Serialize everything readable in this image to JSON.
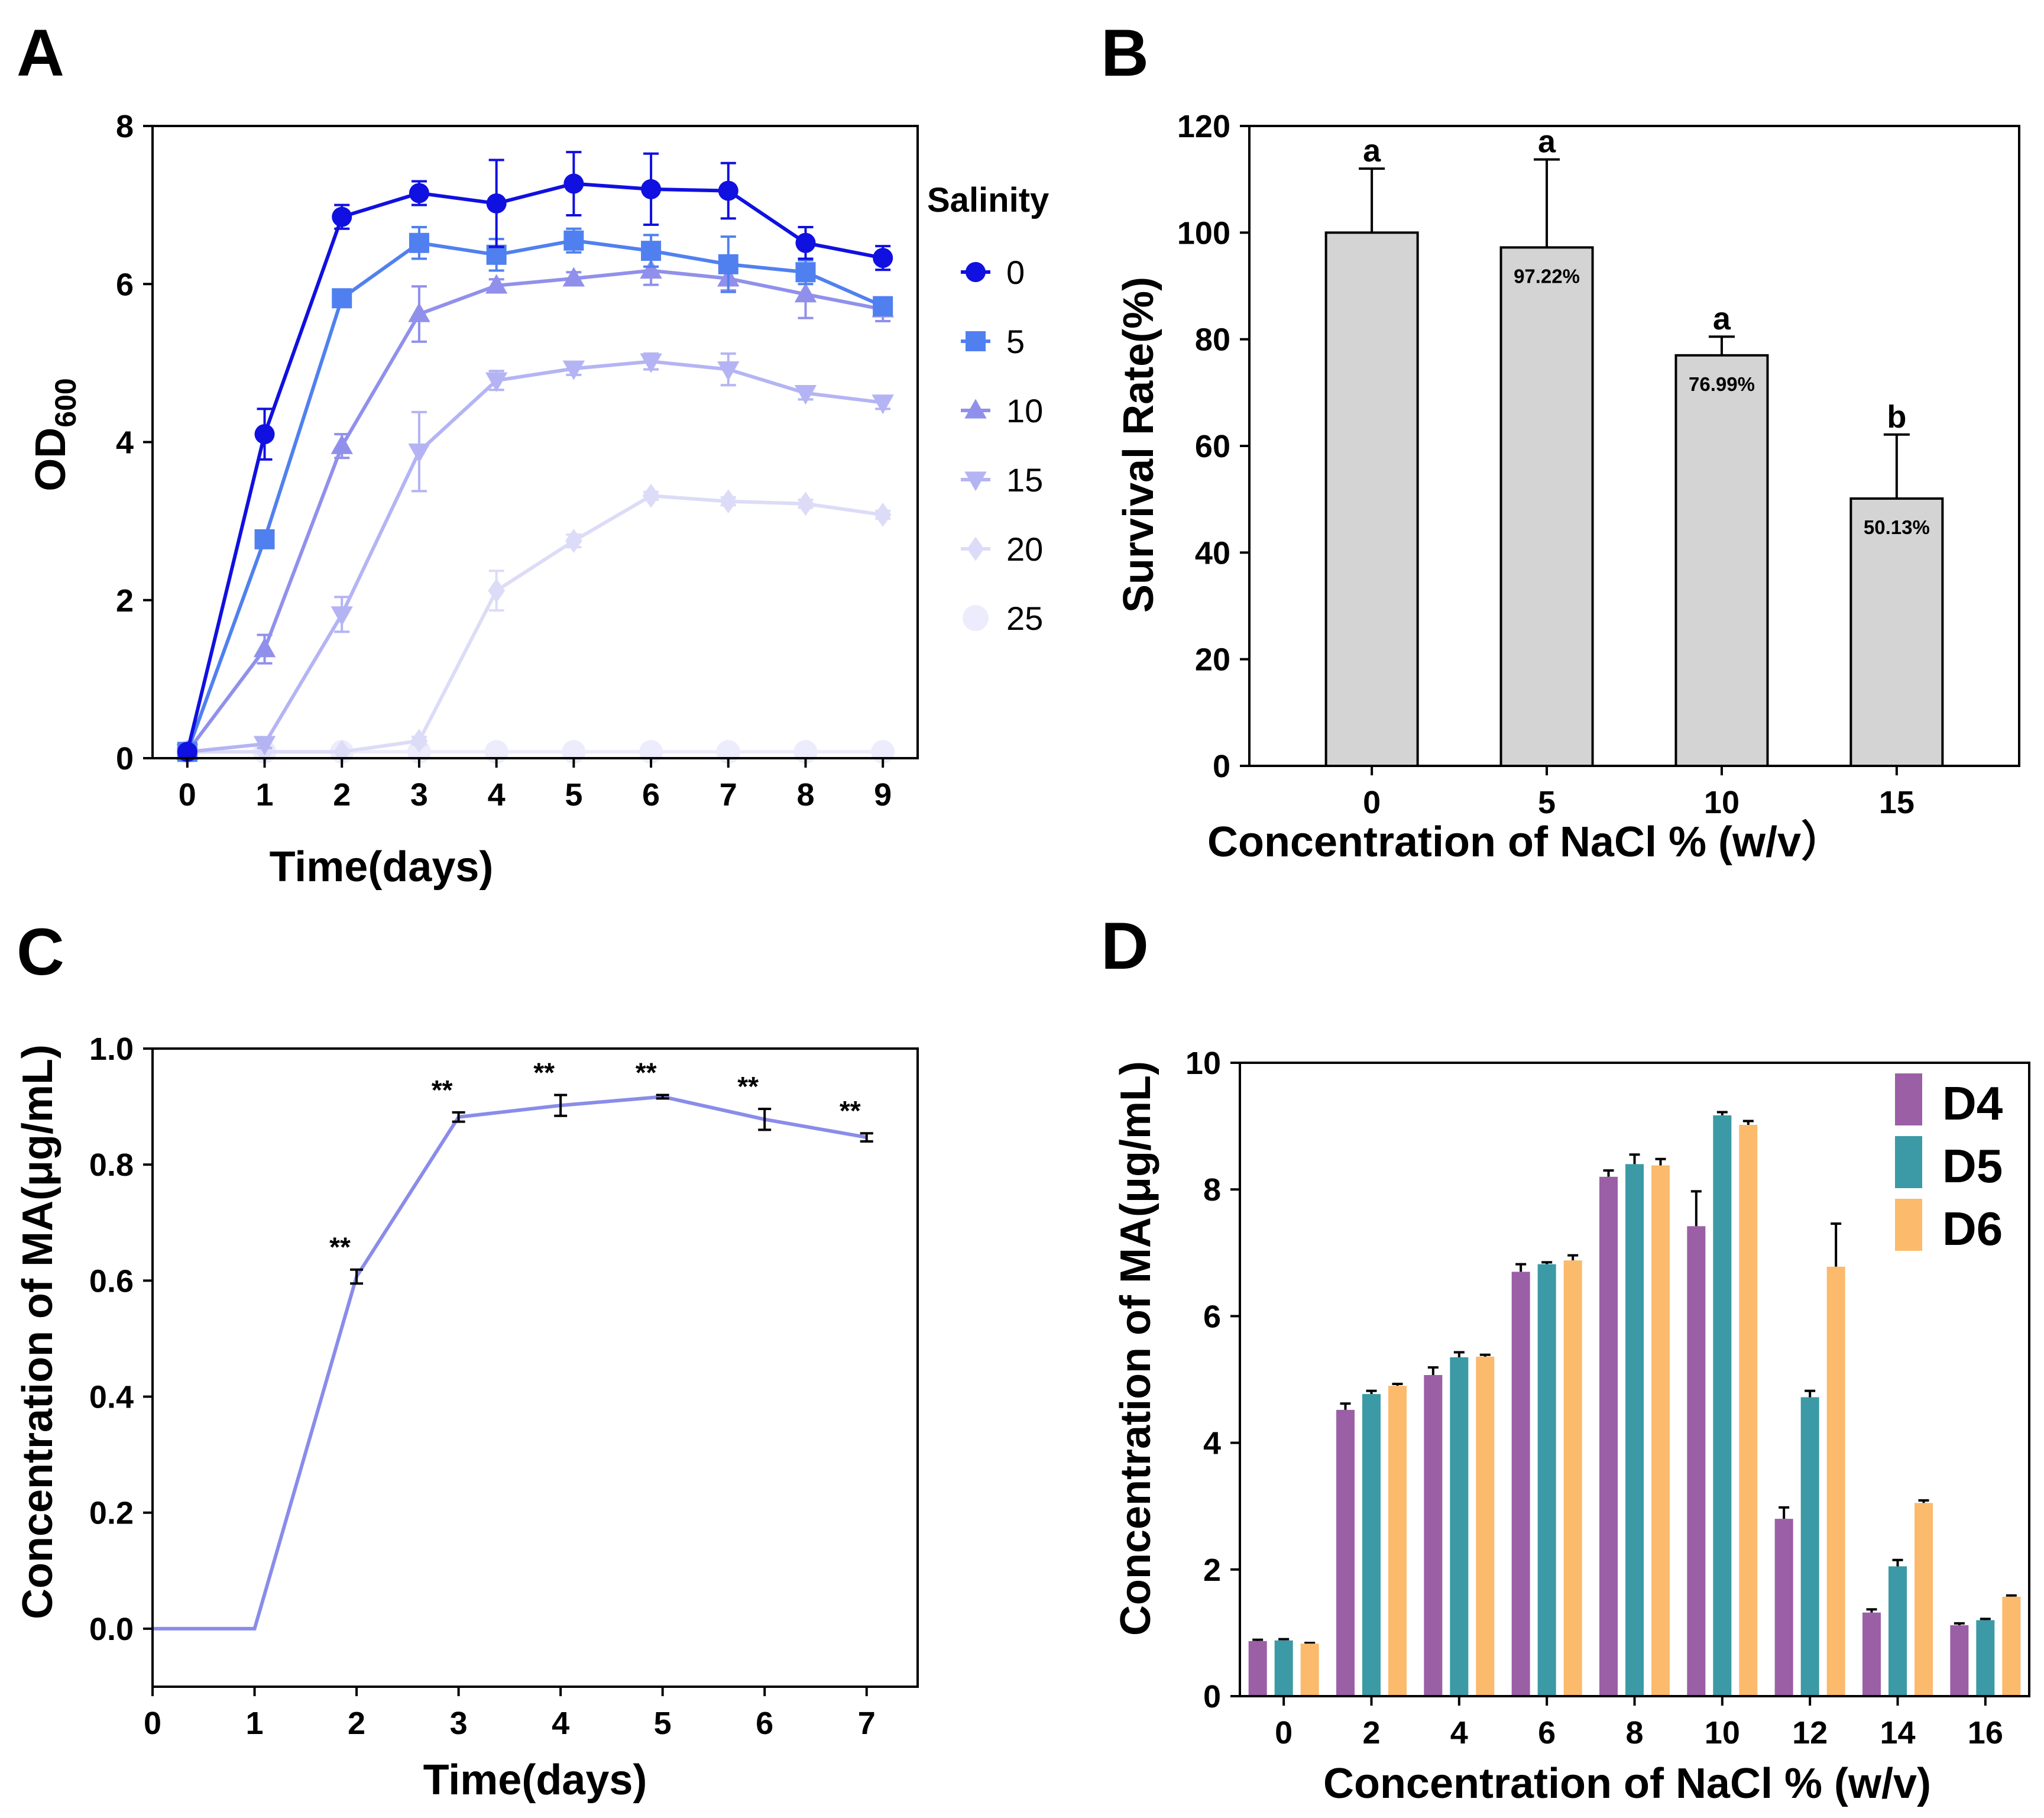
{
  "panels": {
    "A": {
      "letter": "A"
    },
    "B": {
      "letter": "B"
    },
    "C": {
      "letter": "C"
    },
    "D": {
      "letter": "D"
    }
  },
  "chart_data": [
    {
      "id": "A",
      "type": "line",
      "xlabel": "Time(days)",
      "ylabel": "OD",
      "ylabel_sub": "600",
      "x": [
        0,
        1,
        2,
        3,
        4,
        5,
        6,
        7,
        8,
        9
      ],
      "xlim": [
        -0.45,
        9.45
      ],
      "ylim": [
        0,
        8
      ],
      "xticks": [
        0,
        1,
        2,
        3,
        4,
        5,
        6,
        7,
        8,
        9
      ],
      "yticks": [
        0,
        2,
        4,
        6,
        8
      ],
      "legend_title": "Salinity",
      "series": [
        {
          "name": "0",
          "color": "#1010e0",
          "marker": "circle",
          "values": [
            0.08,
            4.1,
            6.85,
            7.15,
            7.02,
            7.27,
            7.2,
            7.18,
            6.52,
            6.33
          ],
          "errors": [
            0.05,
            0.32,
            0.15,
            0.15,
            0.55,
            0.4,
            0.45,
            0.35,
            0.2,
            0.15
          ]
        },
        {
          "name": "5",
          "color": "#5080f0",
          "marker": "square",
          "values": [
            0.08,
            2.77,
            5.82,
            6.52,
            6.37,
            6.55,
            6.42,
            6.25,
            6.15,
            5.72
          ],
          "errors": [
            0.05,
            0.1,
            0.1,
            0.2,
            0.2,
            0.15,
            0.2,
            0.35,
            0.15,
            0.1
          ]
        },
        {
          "name": "10",
          "color": "#9090ec",
          "marker": "triangle-up",
          "values": [
            0.08,
            1.38,
            3.95,
            5.62,
            5.98,
            6.07,
            6.17,
            6.07,
            5.87,
            5.68
          ],
          "errors": [
            0.05,
            0.18,
            0.15,
            0.35,
            0.08,
            0.08,
            0.18,
            0.15,
            0.3,
            0.15
          ]
        },
        {
          "name": "15",
          "color": "#b4b4f4",
          "marker": "triangle-down",
          "values": [
            0.08,
            0.18,
            1.82,
            3.88,
            4.78,
            4.93,
            5.02,
            4.92,
            4.62,
            4.5
          ],
          "errors": [
            0.03,
            0.05,
            0.22,
            0.5,
            0.12,
            0.08,
            0.1,
            0.2,
            0.08,
            0.08
          ]
        },
        {
          "name": "20",
          "color": "#dcdcf8",
          "marker": "diamond",
          "values": [
            0.08,
            0.08,
            0.08,
            0.22,
            2.12,
            2.75,
            3.32,
            3.25,
            3.22,
            3.08
          ],
          "errors": [
            0.02,
            0.02,
            0.02,
            0.05,
            0.25,
            0.08,
            0.05,
            0.05,
            0.05,
            0.05
          ]
        },
        {
          "name": "25",
          "color": "#ececfc",
          "marker": "circle",
          "values": [
            0.08,
            0.08,
            0.08,
            0.08,
            0.08,
            0.08,
            0.08,
            0.08,
            0.08,
            0.08
          ],
          "errors": [
            0,
            0,
            0,
            0,
            0,
            0,
            0,
            0,
            0,
            0
          ]
        }
      ]
    },
    {
      "id": "B",
      "type": "bar",
      "xlabel": "Concentration of NaCl % (w/v）",
      "ylabel": "Survival Rate(%)",
      "categories": [
        "0",
        "5",
        "10",
        "15"
      ],
      "values": [
        100,
        97.22,
        76.99,
        50.13
      ],
      "errors": [
        12,
        16.5,
        3.5,
        12
      ],
      "value_labels": [
        "",
        "97.22%",
        "76.99%",
        "50.13%"
      ],
      "significance": [
        "a",
        "a",
        "a",
        "b"
      ],
      "bar_color": "#d4d4d4",
      "ylim": [
        0,
        120
      ],
      "yticks": [
        0,
        20,
        40,
        60,
        80,
        100,
        120
      ]
    },
    {
      "id": "C",
      "type": "line",
      "xlabel": "Time(days)",
      "ylabel": "Concentration of  MA(μg/mL)",
      "x": [
        0,
        1,
        2,
        3,
        4,
        5,
        6,
        7
      ],
      "values": [
        0,
        0,
        0.607,
        0.882,
        0.902,
        0.917,
        0.878,
        0.847
      ],
      "errors": [
        0,
        0,
        0.012,
        0.008,
        0.018,
        0.003,
        0.018,
        0.007
      ],
      "significance": [
        "",
        "",
        "**",
        "**",
        "**",
        "**",
        "**",
        "**"
      ],
      "color": "#8a8cea",
      "xlim": [
        0,
        7.5
      ],
      "ylim": [
        -0.1,
        1.0
      ],
      "xticks": [
        0,
        1,
        2,
        3,
        4,
        5,
        6,
        7
      ],
      "yticks": [
        0.0,
        0.2,
        0.4,
        0.6,
        0.8,
        1.0
      ],
      "ytick_labels": [
        "0.0",
        "0.2",
        "0.4",
        "0.6",
        "0.8",
        "1.0"
      ]
    },
    {
      "id": "D",
      "type": "bar",
      "xlabel": "Concentration of NaCl % (w/v)",
      "ylabel": "Concentration of  MA(μg/mL)",
      "categories": [
        "0",
        "2",
        "4",
        "6",
        "8",
        "10",
        "12",
        "14",
        "16"
      ],
      "ylim": [
        0,
        10
      ],
      "yticks": [
        0,
        2,
        4,
        6,
        8,
        10
      ],
      "series": [
        {
          "name": "D4",
          "color": "#9b5fa6",
          "values": [
            0.87,
            4.52,
            5.07,
            6.7,
            8.2,
            7.42,
            2.8,
            1.32,
            1.12
          ],
          "errors": [
            0.02,
            0.1,
            0.12,
            0.12,
            0.1,
            0.55,
            0.18,
            0.05,
            0.03
          ]
        },
        {
          "name": "D5",
          "color": "#3b9aa5",
          "values": [
            0.88,
            4.77,
            5.35,
            6.82,
            8.4,
            9.17,
            4.72,
            2.05,
            1.2
          ],
          "errors": [
            0.02,
            0.05,
            0.08,
            0.03,
            0.15,
            0.05,
            0.1,
            0.1,
            0.02
          ]
        },
        {
          "name": "D6",
          "color": "#fbba6c",
          "values": [
            0.83,
            4.9,
            5.36,
            6.88,
            8.38,
            9.02,
            6.78,
            3.05,
            1.57
          ],
          "errors": [
            0.01,
            0.03,
            0.03,
            0.08,
            0.1,
            0.06,
            0.68,
            0.04,
            0.02
          ]
        }
      ]
    }
  ]
}
